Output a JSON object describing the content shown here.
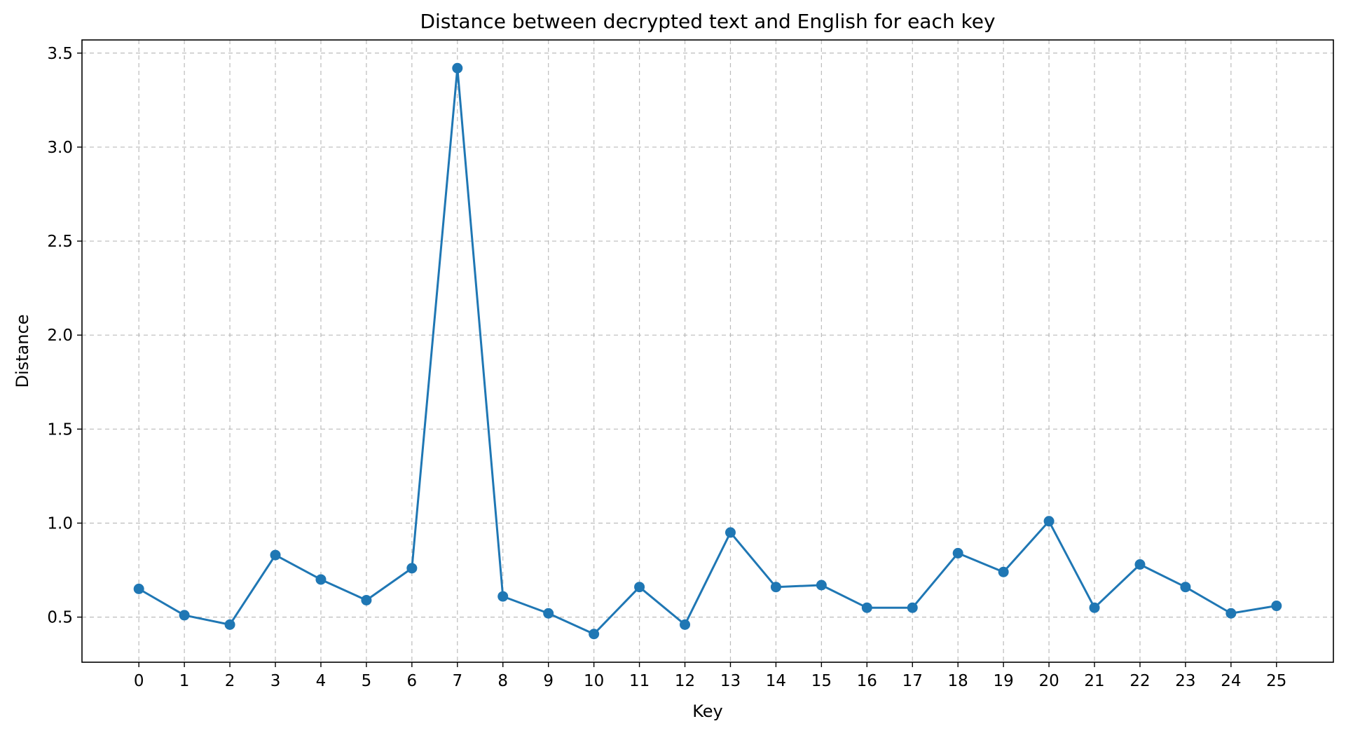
{
  "chart_data": {
    "type": "line",
    "title": "Distance between decrypted text and English for each key",
    "xlabel": "Key",
    "ylabel": "Distance",
    "x": [
      0,
      1,
      2,
      3,
      4,
      5,
      6,
      7,
      8,
      9,
      10,
      11,
      12,
      13,
      14,
      15,
      16,
      17,
      18,
      19,
      20,
      21,
      22,
      23,
      24,
      25
    ],
    "xticks": [
      "0",
      "1",
      "2",
      "3",
      "4",
      "5",
      "6",
      "7",
      "8",
      "9",
      "10",
      "11",
      "12",
      "13",
      "14",
      "15",
      "16",
      "17",
      "18",
      "19",
      "20",
      "21",
      "22",
      "23",
      "24",
      "25"
    ],
    "series": [
      {
        "values": [
          0.65,
          0.51,
          0.46,
          0.83,
          0.7,
          0.59,
          0.76,
          3.42,
          0.61,
          0.52,
          0.41,
          0.66,
          0.46,
          0.95,
          0.66,
          0.67,
          0.55,
          0.55,
          0.84,
          0.74,
          1.01,
          0.55,
          0.78,
          0.66,
          0.52,
          0.56
        ],
        "color": "#1f77b4",
        "marker": "circle"
      }
    ],
    "yticks": [
      "0.5",
      "1.0",
      "1.5",
      "2.0",
      "2.5",
      "3.0",
      "3.5"
    ],
    "ytick_values": [
      0.5,
      1.0,
      1.5,
      2.0,
      2.5,
      3.0,
      3.5
    ],
    "xlim": [
      -1.25,
      26.25
    ],
    "ylim": [
      0.26,
      3.57
    ],
    "grid": true,
    "grid_style": "dashed"
  }
}
